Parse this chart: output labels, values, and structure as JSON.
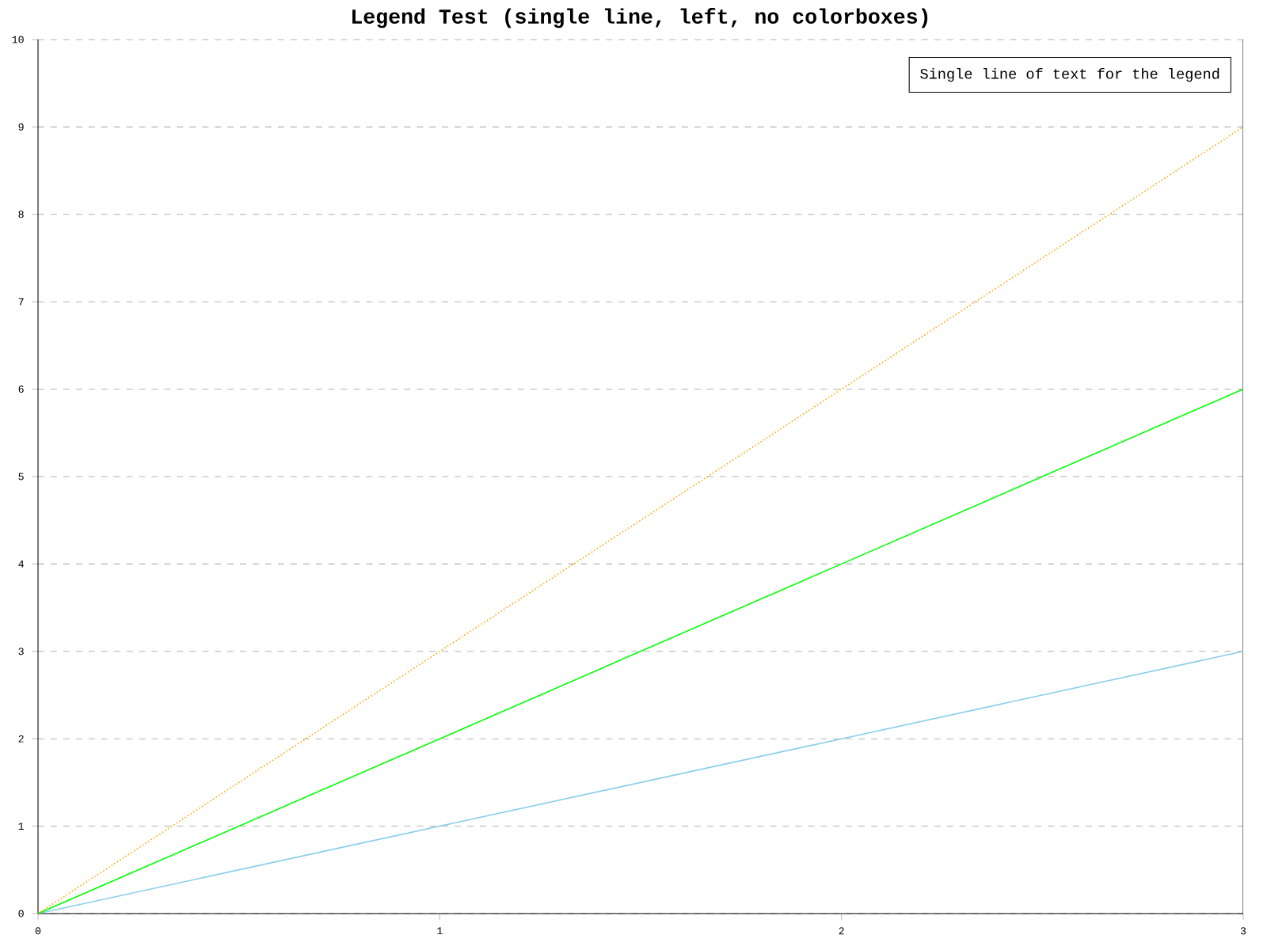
{
  "chart_data": {
    "type": "line",
    "title": "Legend Test (single line, left, no colorboxes)",
    "annotations": [
      "Single line of text for the legend"
    ],
    "x": [
      0,
      1,
      2,
      3
    ],
    "xlim": [
      0,
      3
    ],
    "ylim": [
      0,
      10
    ],
    "xticks": [
      0,
      1,
      2,
      3
    ],
    "yticks": [
      0,
      1,
      2,
      3,
      4,
      5,
      6,
      7,
      8,
      9,
      10
    ],
    "grid": "y",
    "marker": "none",
    "series": [
      {
        "color": "#87ceeb",
        "values": [
          0,
          1,
          2,
          3
        ],
        "line_style": "solid"
      },
      {
        "color": "#00ff00",
        "values": [
          0,
          2,
          4,
          6
        ],
        "line_style": "solid"
      },
      {
        "color": "#ffa500",
        "values": [
          0,
          3,
          6,
          9
        ],
        "line_style": "dotted"
      }
    ]
  }
}
